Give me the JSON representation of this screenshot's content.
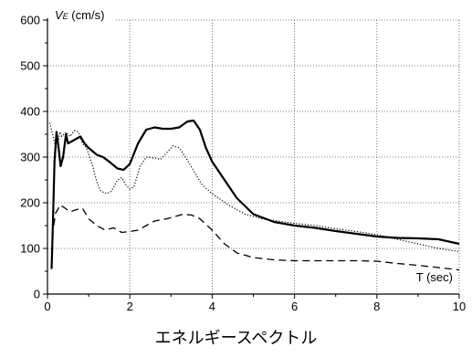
{
  "chart_data": {
    "type": "line",
    "xlabel": "T (sec)",
    "ylabel_main": "V",
    "ylabel_sub": "E",
    "ylabel_unit": " (cm/s)",
    "xlim": [
      0,
      10
    ],
    "ylim": [
      0,
      600
    ],
    "xticks": [
      0,
      2,
      4,
      6,
      8,
      10
    ],
    "yticks": [
      0,
      100,
      200,
      300,
      400,
      500,
      600
    ],
    "grid": true,
    "series": [
      {
        "style": "solid",
        "color": "#000000",
        "points": [
          [
            0.1,
            55
          ],
          [
            0.13,
            150
          ],
          [
            0.17,
            290
          ],
          [
            0.22,
            355
          ],
          [
            0.27,
            320
          ],
          [
            0.32,
            280
          ],
          [
            0.38,
            300
          ],
          [
            0.45,
            350
          ],
          [
            0.5,
            330
          ],
          [
            0.6,
            335
          ],
          [
            0.7,
            340
          ],
          [
            0.8,
            345
          ],
          [
            0.9,
            330
          ],
          [
            1.0,
            320
          ],
          [
            1.2,
            305
          ],
          [
            1.35,
            300
          ],
          [
            1.5,
            290
          ],
          [
            1.7,
            275
          ],
          [
            1.85,
            272
          ],
          [
            2.0,
            285
          ],
          [
            2.2,
            330
          ],
          [
            2.4,
            360
          ],
          [
            2.6,
            365
          ],
          [
            2.8,
            362
          ],
          [
            3.0,
            362
          ],
          [
            3.2,
            365
          ],
          [
            3.4,
            378
          ],
          [
            3.55,
            380
          ],
          [
            3.7,
            360
          ],
          [
            3.85,
            320
          ],
          [
            4.0,
            290
          ],
          [
            4.3,
            250
          ],
          [
            4.6,
            210
          ],
          [
            5.0,
            175
          ],
          [
            5.5,
            158
          ],
          [
            6.0,
            150
          ],
          [
            6.5,
            145
          ],
          [
            7.0,
            138
          ],
          [
            7.5,
            132
          ],
          [
            8.0,
            126
          ],
          [
            8.5,
            123
          ],
          [
            9.0,
            122
          ],
          [
            9.5,
            120
          ],
          [
            10.0,
            110
          ]
        ]
      },
      {
        "style": "dotted",
        "color": "#000000",
        "points": [
          [
            0.05,
            375
          ],
          [
            0.1,
            360
          ],
          [
            0.15,
            340
          ],
          [
            0.2,
            320
          ],
          [
            0.25,
            325
          ],
          [
            0.3,
            355
          ],
          [
            0.35,
            345
          ],
          [
            0.45,
            355
          ],
          [
            0.55,
            345
          ],
          [
            0.65,
            358
          ],
          [
            0.75,
            355
          ],
          [
            0.85,
            330
          ],
          [
            0.95,
            320
          ],
          [
            1.1,
            280
          ],
          [
            1.2,
            245
          ],
          [
            1.3,
            225
          ],
          [
            1.45,
            220
          ],
          [
            1.55,
            225
          ],
          [
            1.7,
            250
          ],
          [
            1.8,
            255
          ],
          [
            1.9,
            240
          ],
          [
            2.0,
            230
          ],
          [
            2.1,
            235
          ],
          [
            2.25,
            280
          ],
          [
            2.4,
            300
          ],
          [
            2.6,
            298
          ],
          [
            2.75,
            295
          ],
          [
            2.9,
            310
          ],
          [
            3.05,
            325
          ],
          [
            3.2,
            320
          ],
          [
            3.35,
            300
          ],
          [
            3.55,
            270
          ],
          [
            3.75,
            240
          ],
          [
            4.0,
            220
          ],
          [
            4.4,
            195
          ],
          [
            4.8,
            175
          ],
          [
            5.2,
            165
          ],
          [
            5.6,
            160
          ],
          [
            6.0,
            155
          ],
          [
            6.5,
            150
          ],
          [
            7.0,
            143
          ],
          [
            7.5,
            137
          ],
          [
            8.0,
            130
          ],
          [
            8.5,
            120
          ],
          [
            9.0,
            110
          ],
          [
            9.5,
            100
          ],
          [
            10.0,
            93
          ]
        ]
      },
      {
        "style": "dashed",
        "color": "#000000",
        "points": [
          [
            0.15,
            150
          ],
          [
            0.2,
            178
          ],
          [
            0.25,
            185
          ],
          [
            0.3,
            195
          ],
          [
            0.4,
            190
          ],
          [
            0.55,
            180
          ],
          [
            0.7,
            185
          ],
          [
            0.85,
            188
          ],
          [
            1.0,
            165
          ],
          [
            1.2,
            150
          ],
          [
            1.4,
            140
          ],
          [
            1.6,
            145
          ],
          [
            1.8,
            135
          ],
          [
            2.0,
            137
          ],
          [
            2.2,
            140
          ],
          [
            2.4,
            150
          ],
          [
            2.6,
            160
          ],
          [
            2.9,
            165
          ],
          [
            3.1,
            170
          ],
          [
            3.3,
            175
          ],
          [
            3.5,
            173
          ],
          [
            3.7,
            165
          ],
          [
            4.0,
            140
          ],
          [
            4.3,
            110
          ],
          [
            4.6,
            90
          ],
          [
            5.0,
            80
          ],
          [
            5.5,
            75
          ],
          [
            6.0,
            73
          ],
          [
            6.5,
            73
          ],
          [
            7.0,
            73
          ],
          [
            7.5,
            73
          ],
          [
            8.0,
            72
          ],
          [
            8.5,
            67
          ],
          [
            9.0,
            63
          ],
          [
            9.5,
            58
          ],
          [
            10.0,
            53
          ]
        ]
      }
    ]
  },
  "caption": "エネルギースペクトル"
}
